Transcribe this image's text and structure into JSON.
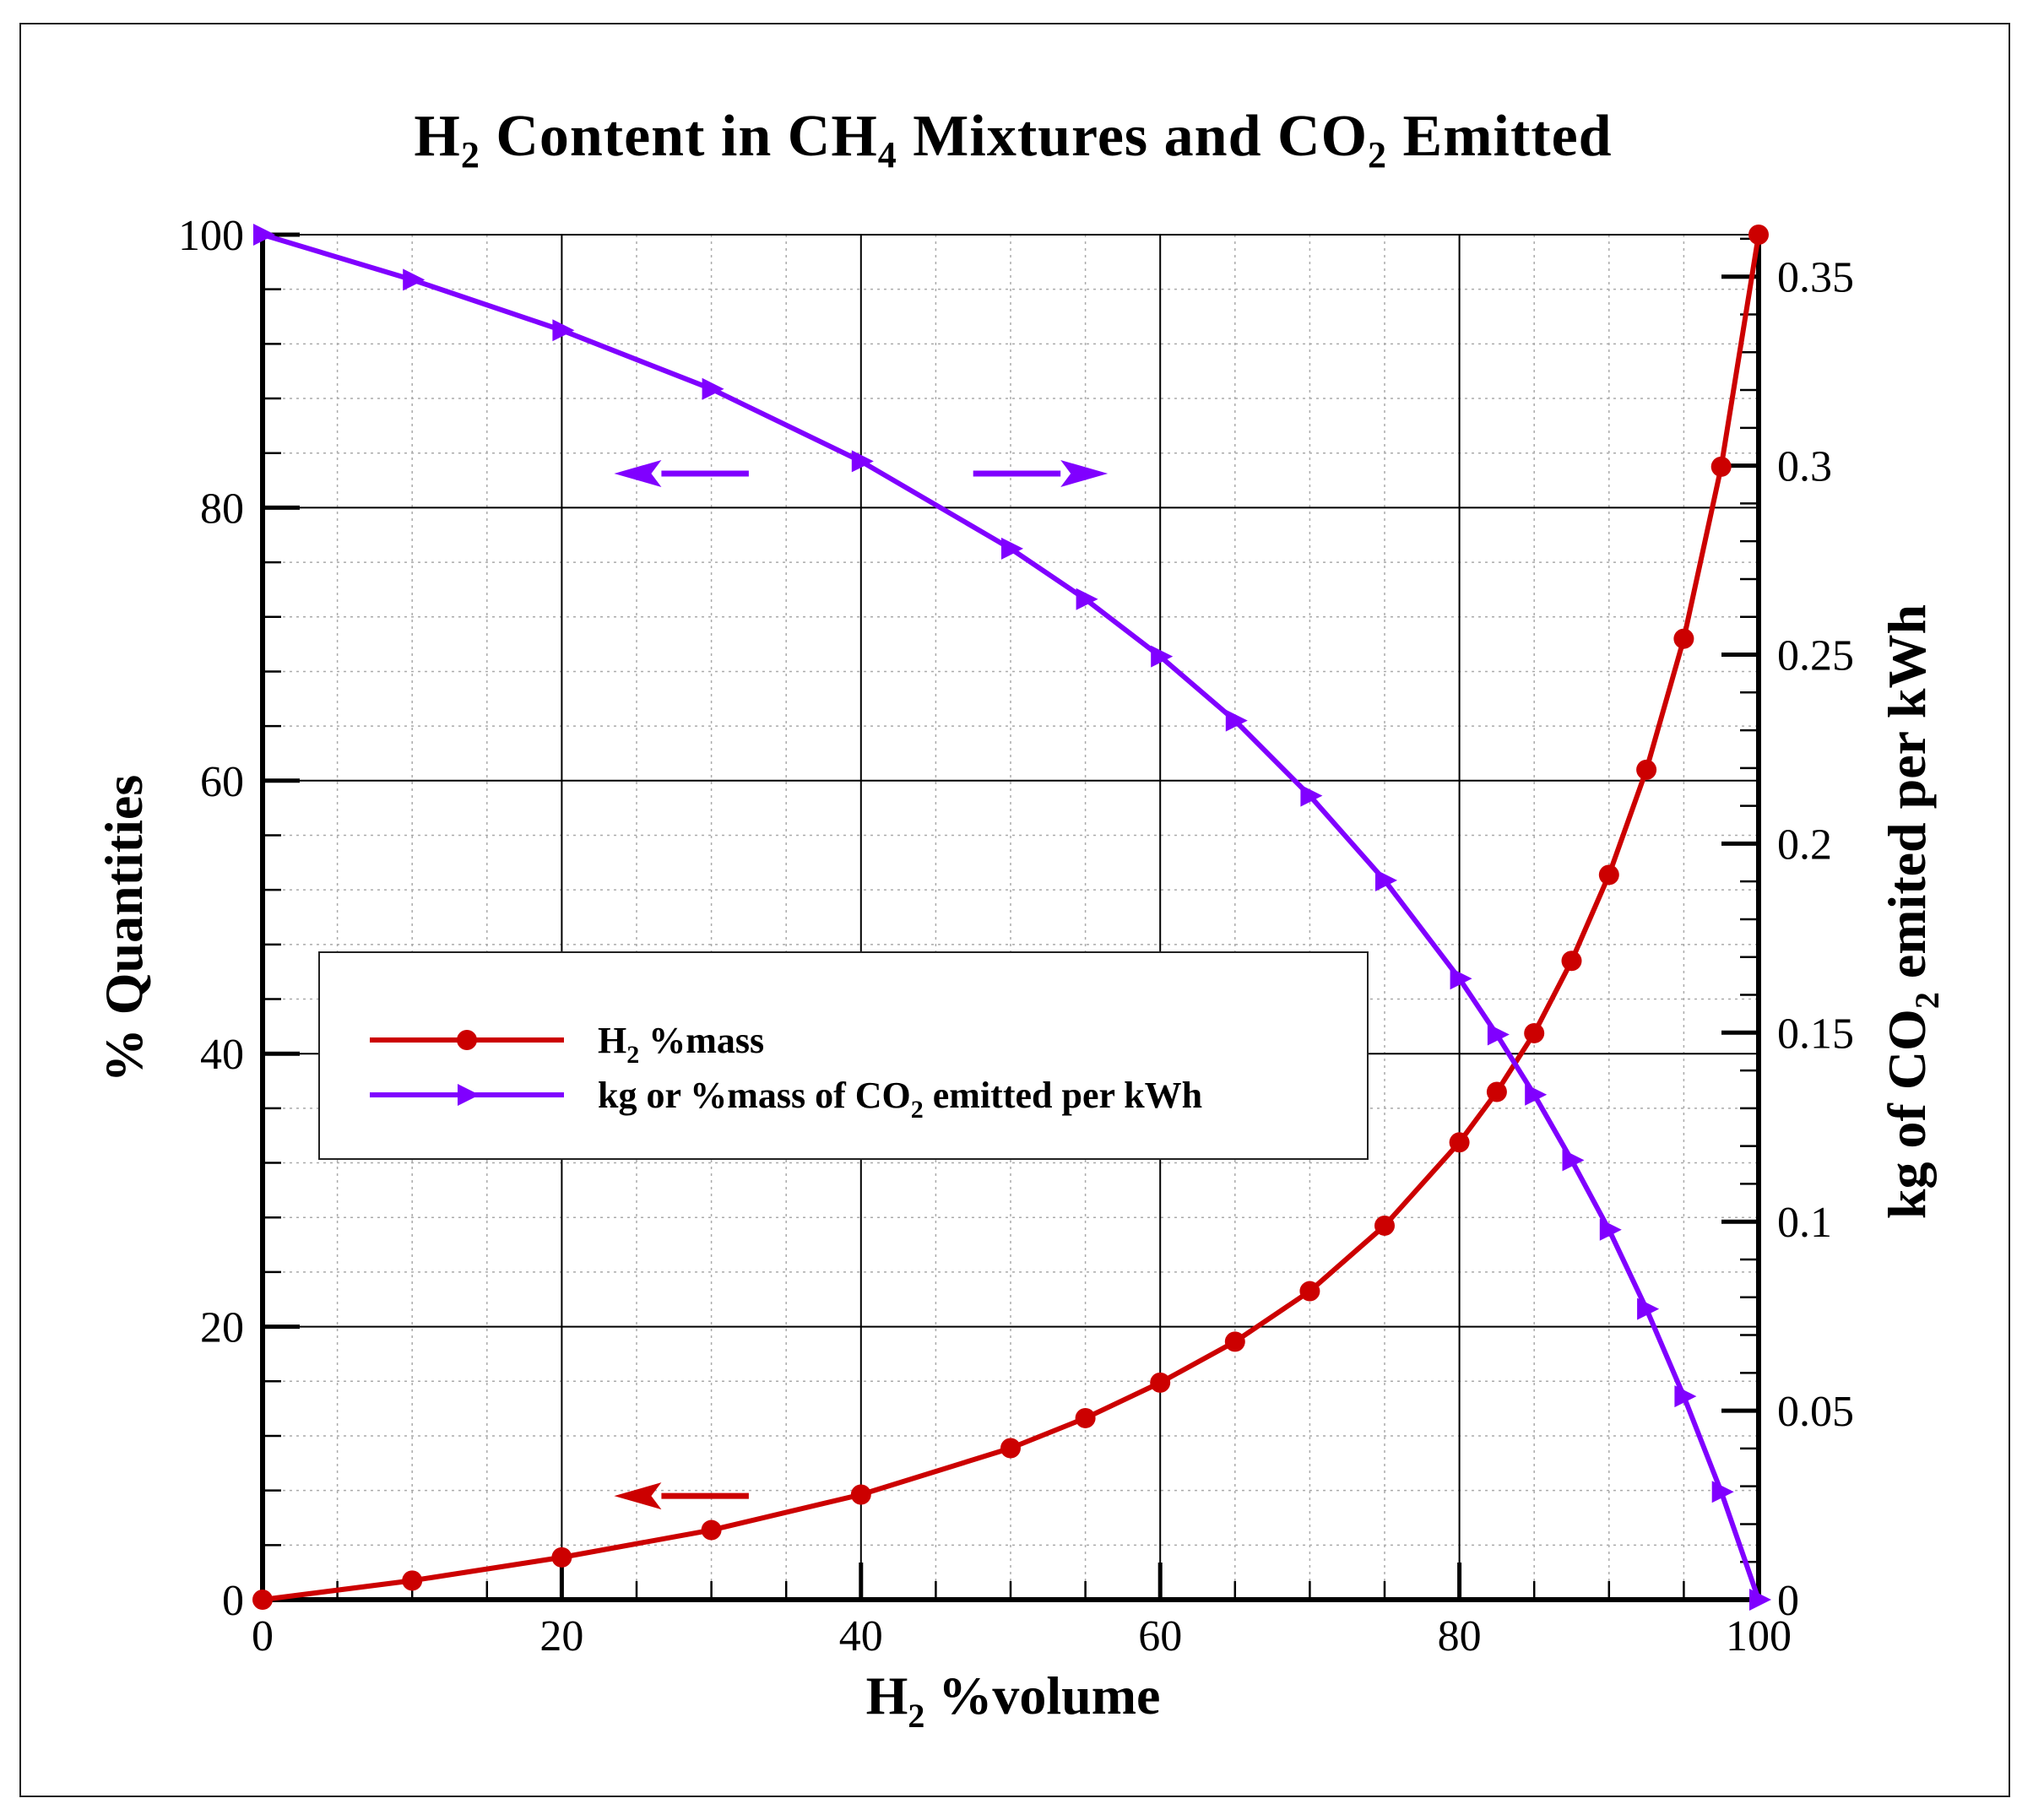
{
  "chart_data": {
    "type": "line",
    "title": {
      "pre": "H",
      "sub1": "2",
      "mid": " Content in CH",
      "sub2": "4",
      "mid2": " Mixtures and CO",
      "sub3": "2",
      "post": " Emitted"
    },
    "xlabel": {
      "pre": "H",
      "sub": "2",
      "post": " %volume"
    },
    "ylabel_left": "% Quantities",
    "ylabel_right": {
      "pre": "kg of CO",
      "sub": "2",
      "post": " emited per kWh"
    },
    "xlim": [
      0,
      100
    ],
    "ylim_left": [
      0,
      100
    ],
    "ylim_right": [
      0,
      0.3611
    ],
    "x_ticks": [
      "0",
      "20",
      "40",
      "60",
      "80",
      "100"
    ],
    "y_left_ticks": [
      "0",
      "20",
      "40",
      "60",
      "80",
      "100"
    ],
    "y_right_ticks": [
      "0",
      "0.05",
      "0.1",
      "0.15",
      "0.2",
      "0.25",
      "0.3",
      "0.35"
    ],
    "grid": true,
    "legend_position": "center-left",
    "series": [
      {
        "name": {
          "pre": "H",
          "sub": "2",
          "post": " %mass"
        },
        "color": "#cc0000",
        "marker": "circle",
        "axis": "left",
        "x": [
          0,
          10,
          20,
          30,
          40,
          50,
          55,
          60,
          65,
          70,
          75,
          80,
          82.5,
          85,
          87.5,
          90,
          92.5,
          95,
          97.5,
          100
        ],
        "y": [
          0,
          1.4,
          3.1,
          5.1,
          7.7,
          11.1,
          13.3,
          15.9,
          18.9,
          22.6,
          27.4,
          33.5,
          37.2,
          41.5,
          46.8,
          53.1,
          60.8,
          70.4,
          83.0,
          100
        ]
      },
      {
        "name": {
          "pre": "kg or %mass of CO",
          "sub": "2",
          "post": " emitted per kWh"
        },
        "color": "#8000ff",
        "marker": "triangle-right",
        "axis": "left",
        "x": [
          0,
          10,
          20,
          30,
          40,
          50,
          55,
          60,
          65,
          70,
          75,
          80,
          82.5,
          85,
          87.5,
          90,
          92.5,
          95,
          97.5,
          100
        ],
        "y": [
          100,
          96.7,
          93.0,
          88.7,
          83.4,
          77.0,
          73.3,
          69.1,
          64.4,
          58.9,
          52.7,
          45.5,
          41.4,
          37.0,
          32.2,
          27.1,
          21.3,
          14.9,
          7.9,
          0
        ]
      }
    ],
    "annotations": [
      {
        "type": "arrow",
        "direction": "left",
        "color": "#8000ff",
        "x_from": 32.5,
        "x_to": 23.5,
        "y": 82.5
      },
      {
        "type": "arrow",
        "direction": "right",
        "color": "#8000ff",
        "x_from": 47.5,
        "x_to": 56.5,
        "y": 82.5
      },
      {
        "type": "arrow",
        "direction": "left",
        "color": "#cc0000",
        "x_from": 32.5,
        "x_to": 23.5,
        "y": 7.6
      }
    ]
  }
}
